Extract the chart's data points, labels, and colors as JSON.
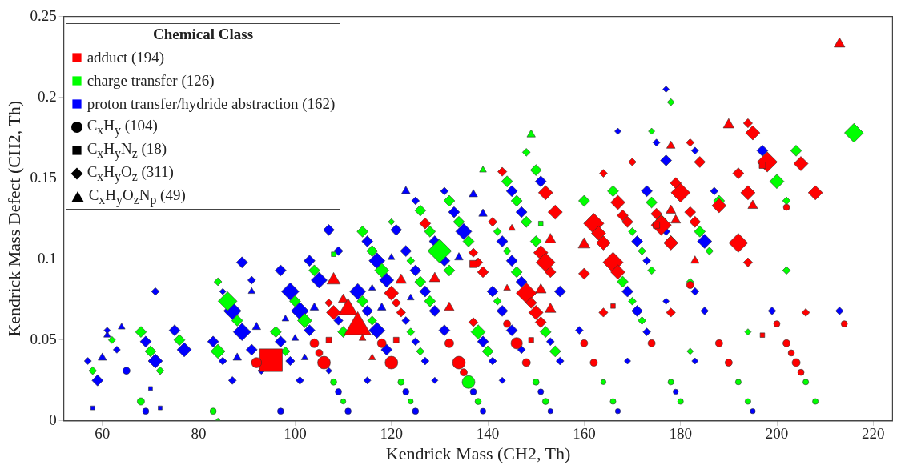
{
  "chart_data": {
    "type": "bubble",
    "xlabel": "Kendrick Mass (CH2, Th)",
    "ylabel": "Kendrick Mass Defect (CH2, Th)",
    "legend_title": "Chemical Class",
    "legend": "top left",
    "grid": false,
    "xlim": [
      52,
      224
    ],
    "xticks": [
      60,
      80,
      100,
      120,
      140,
      160,
      180,
      200,
      220
    ],
    "ylim": [
      0,
      0.25
    ],
    "yticks": [
      0,
      0.05,
      0.1,
      0.15,
      0.2,
      0.25
    ],
    "series": [
      {
        "color": "#ff0000",
        "marker": "circle",
        "x": [
          92,
          104,
          105,
          106,
          118,
          120,
          132,
          134,
          135,
          144,
          146,
          148,
          160,
          162,
          174,
          182,
          188,
          190,
          200,
          202,
          202,
          203,
          204,
          205,
          214
        ],
        "values": [
          0.036,
          0.048,
          0.042,
          0.036,
          0.048,
          0.036,
          0.048,
          0.036,
          0.03,
          0.06,
          0.048,
          0.036,
          0.048,
          0.036,
          0.048,
          0.084,
          0.048,
          0.036,
          0.06,
          0.132,
          0.048,
          0.042,
          0.036,
          0.03,
          0.06
        ],
        "sizes": [
          0.16,
          0.12,
          0.08,
          0.25,
          0.12,
          0.25,
          0.12,
          0.25,
          0.08,
          0.08,
          0.2,
          0.1,
          0.08,
          0.08,
          0.08,
          0.08,
          0.08,
          0.08,
          0.06,
          0.06,
          0.08,
          0.06,
          0.1,
          0.06,
          0.06
        ]
      },
      {
        "color": "#ff0000",
        "marker": "square",
        "x": [
          95,
          107,
          121,
          137,
          149,
          166,
          175,
          197,
          197
        ],
        "values": [
          0.0375,
          0.05,
          0.05,
          0.097,
          0.05,
          0.071,
          0.121,
          0.158,
          0.053
        ],
        "sizes": [
          1,
          0.06,
          0.06,
          0.1,
          0.05,
          0.04,
          0.08,
          0.08,
          0.04
        ]
      },
      {
        "color": "#ff0000",
        "marker": "diamond",
        "x": [
          107,
          108,
          120,
          121,
          122,
          127,
          137,
          137,
          138,
          139,
          141,
          143,
          148,
          149,
          150,
          151,
          151,
          152,
          153,
          152,
          154,
          160,
          162,
          163,
          164,
          164,
          164,
          166,
          167,
          167,
          168,
          169,
          170,
          175,
          176,
          178,
          178,
          179,
          180,
          182,
          182,
          183,
          184,
          188,
          192,
          192,
          194,
          194,
          194,
          195,
          198,
          205,
          206,
          208
        ],
        "values": [
          0.073,
          0.067,
          0.079,
          0.073,
          0.067,
          0.122,
          0.104,
          0.061,
          0.098,
          0.092,
          0.123,
          0.154,
          0.079,
          0.073,
          0.067,
          0.061,
          0.104,
          0.098,
          0.092,
          0.141,
          0.129,
          0.091,
          0.122,
          0.116,
          0.11,
          0.153,
          0.067,
          0.098,
          0.092,
          0.135,
          0.127,
          0.123,
          0.16,
          0.128,
          0.121,
          0.11,
          0.067,
          0.147,
          0.141,
          0.172,
          0.129,
          0.123,
          0.16,
          0.133,
          0.153,
          0.11,
          0.184,
          0.141,
          0.098,
          0.178,
          0.16,
          0.159,
          0.067,
          0.141
        ],
        "sizes": [
          0.06,
          0.2,
          0.2,
          0.08,
          0.08,
          0.12,
          0.08,
          0.08,
          0.08,
          0.12,
          0.08,
          0.08,
          0.4,
          0.12,
          0.2,
          0.12,
          0.2,
          0.35,
          0.12,
          0.2,
          0.2,
          0.12,
          0.4,
          0.2,
          0.2,
          0.06,
          0.08,
          0.4,
          0.2,
          0.2,
          0.12,
          0.12,
          0.06,
          0.12,
          0.4,
          0.2,
          0.08,
          0.12,
          0.35,
          0.06,
          0.12,
          0.12,
          0.12,
          0.2,
          0.12,
          0.35,
          0.08,
          0.2,
          0.08,
          0.2,
          0.4,
          0.2,
          0.06,
          0.2
        ]
      },
      {
        "color": "#ff0000",
        "marker": "triangle",
        "x": [
          108,
          110,
          111,
          113,
          114,
          116,
          122,
          129,
          132,
          144,
          145,
          151,
          153,
          153,
          160,
          178,
          179,
          178,
          183,
          190,
          195,
          213
        ],
        "values": [
          0.087,
          0.075,
          0.069,
          0.058,
          0.051,
          0.039,
          0.087,
          0.088,
          0.07,
          0.082,
          0.119,
          0.081,
          0.069,
          0.112,
          0.109,
          0.13,
          0.124,
          0.17,
          0.099,
          0.183,
          0.133,
          0.233
        ],
        "sizes": [
          0.15,
          0.08,
          0.3,
          0.6,
          0.04,
          0.04,
          0.1,
          0.1,
          0.08,
          0.04,
          0.04,
          0.1,
          0.1,
          0.1,
          0.12,
          0.08,
          0.08,
          0.06,
          0.06,
          0.1,
          0.08,
          0.1
        ]
      },
      {
        "color": "#00ff00",
        "marker": "circle",
        "x": [
          68,
          83,
          108,
          110,
          122,
          124,
          136,
          138,
          150,
          152,
          164,
          166,
          178,
          180,
          192,
          194,
          206,
          208
        ],
        "values": [
          0.012,
          0.006,
          0.024,
          0.012,
          0.024,
          0.012,
          0.024,
          0.012,
          0.024,
          0.012,
          0.024,
          0.012,
          0.024,
          0.012,
          0.024,
          0.012,
          0.024,
          0.012
        ],
        "sizes": [
          0.08,
          0.06,
          0.06,
          0.04,
          0.06,
          0.04,
          0.25,
          0.06,
          0.06,
          0.06,
          0.04,
          0.05,
          0.05,
          0.05,
          0.05,
          0.05,
          0.05,
          0.05
        ]
      },
      {
        "color": "#00ff00",
        "marker": "square",
        "x": [
          108,
          151
        ],
        "values": [
          0.103,
          0.122
        ],
        "sizes": [
          0.04,
          0.04
        ]
      },
      {
        "color": "#00ff00",
        "marker": "diamond",
        "x": [
          58,
          62,
          68,
          70,
          72,
          76,
          84,
          84,
          84,
          86,
          88,
          96,
          98,
          100,
          102,
          104,
          110,
          114,
          114,
          116,
          116,
          118,
          120,
          124,
          124,
          126,
          126,
          128,
          126,
          128,
          130,
          132,
          132,
          134,
          136,
          138,
          140,
          142,
          142,
          144,
          144,
          146,
          146,
          148,
          148,
          150,
          150,
          152,
          154,
          160,
          166,
          168,
          170,
          170,
          172,
          172,
          174,
          174,
          174,
          176,
          178,
          178,
          182,
          182,
          184,
          186,
          188,
          194,
          200,
          202,
          202,
          204,
          216
        ],
        "values": [
          0.031,
          0.05,
          0.055,
          0.043,
          0.031,
          0.05,
          0.086,
          0.043,
          0,
          0.074,
          0.062,
          0.055,
          0.043,
          0.074,
          0.062,
          0.093,
          0.055,
          0.074,
          0.117,
          0.062,
          0.105,
          0.093,
          0.123,
          0.099,
          0.055,
          0.086,
          0.043,
          0.074,
          0.13,
          0.117,
          0.105,
          0.093,
          0.136,
          0.123,
          0.111,
          0.055,
          0.043,
          0.074,
          0.117,
          0.105,
          0.148,
          0.092,
          0.136,
          0.123,
          0.166,
          0.155,
          0.111,
          0.055,
          0.043,
          0.136,
          0.142,
          0.086,
          0.074,
          0.117,
          0.062,
          0.105,
          0.093,
          0.135,
          0.179,
          0.124,
          0.197,
          0.112,
          0.086,
          0.043,
          0.117,
          0.105,
          0.136,
          0.055,
          0.148,
          0.136,
          0.093,
          0.167,
          0.178
        ],
        "sizes": [
          0.06,
          0.05,
          0.12,
          0.12,
          0.06,
          0.12,
          0.06,
          0.2,
          0.03,
          0.35,
          0.12,
          0.12,
          0.08,
          0.12,
          0.2,
          0.12,
          0.12,
          0.12,
          0.12,
          0.08,
          0.12,
          0.2,
          0.04,
          0.06,
          0.06,
          0.12,
          0.06,
          0.12,
          0.12,
          0.12,
          0.55,
          0.12,
          0.12,
          0.12,
          0.12,
          0.2,
          0.12,
          0.06,
          0.06,
          0.06,
          0.12,
          0.12,
          0.12,
          0.12,
          0.06,
          0.12,
          0.12,
          0.12,
          0.12,
          0.12,
          0.12,
          0.12,
          0.06,
          0.06,
          0.06,
          0.06,
          0.06,
          0.12,
          0.04,
          0.12,
          0.05,
          0.06,
          0.05,
          0.04,
          0.12,
          0.06,
          0.12,
          0.04,
          0.2,
          0.06,
          0.06,
          0.12,
          0.35
        ]
      },
      {
        "color": "#00ff00",
        "marker": "triangle",
        "x": [
          139,
          149
        ],
        "values": [
          0.155,
          0.177
        ],
        "sizes": [
          0.04,
          0.06
        ]
      },
      {
        "color": "#0000ff",
        "marker": "circle",
        "x": [
          65,
          69,
          97,
          109,
          111,
          123,
          125,
          137,
          139,
          151,
          153,
          167,
          179,
          195
        ],
        "values": [
          0.031,
          0.006,
          0.006,
          0.018,
          0.006,
          0.018,
          0.006,
          0.018,
          0.006,
          0.018,
          0.006,
          0.006,
          0.018,
          0.006
        ],
        "sizes": [
          0.08,
          0.06,
          0.06,
          0.06,
          0.06,
          0.06,
          0.06,
          0.06,
          0.05,
          0.05,
          0.04,
          0.04,
          0.04,
          0.04
        ]
      },
      {
        "color": "#0000ff",
        "marker": "square",
        "x": [
          58,
          70,
          72
        ],
        "values": [
          0.008,
          0.02,
          0.008
        ],
        "sizes": [
          0.03,
          0.03,
          0.03
        ]
      },
      {
        "color": "#0000ff",
        "marker": "diamond",
        "x": [
          57,
          59,
          61,
          63,
          69,
          71,
          71,
          75,
          77,
          83,
          85,
          85,
          87,
          87,
          89,
          89,
          91,
          91,
          93,
          97,
          97,
          99,
          99,
          101,
          101,
          103,
          103,
          105,
          107,
          107,
          109,
          109,
          113,
          115,
          115,
          115,
          117,
          117,
          119,
          119,
          121,
          123,
          123,
          125,
          125,
          125,
          127,
          127,
          129,
          129,
          129,
          131,
          131,
          131,
          133,
          135,
          139,
          141,
          141,
          143,
          143,
          143,
          145,
          145,
          145,
          147,
          147,
          147,
          151,
          153,
          155,
          155,
          159,
          169,
          169,
          171,
          171,
          173,
          173,
          173,
          167,
          175,
          177,
          177,
          177,
          177,
          183,
          183,
          183,
          185,
          185,
          187,
          197,
          199,
          213
        ],
        "values": [
          0.037,
          0.025,
          0.056,
          0.044,
          0.049,
          0.037,
          0.08,
          0.056,
          0.044,
          0.049,
          0.037,
          0.08,
          0.068,
          0.025,
          0.098,
          0.055,
          0.087,
          0.044,
          0.031,
          0.093,
          0.049,
          0.08,
          0.037,
          0.068,
          0.025,
          0.056,
          0.099,
          0.087,
          0.118,
          0.031,
          0.105,
          0.062,
          0.08,
          0.068,
          0.111,
          0.025,
          0.056,
          0.099,
          0.087,
          0.044,
          0.118,
          0.105,
          0.062,
          0.093,
          0.049,
          0.136,
          0.08,
          0.037,
          0.068,
          0.111,
          0.025,
          0.099,
          0.056,
          0.142,
          0.129,
          0.117,
          0.049,
          0.037,
          0.08,
          0.068,
          0.111,
          0.025,
          0.099,
          0.056,
          0.142,
          0.086,
          0.129,
          0.044,
          0.148,
          0.049,
          0.037,
          0.08,
          0.056,
          0.08,
          0.037,
          0.068,
          0.111,
          0.055,
          0.099,
          0.142,
          0.179,
          0.172,
          0.205,
          0.161,
          0.117,
          0.074,
          0.167,
          0.08,
          0.037,
          0.111,
          0.068,
          0.142,
          0.167,
          0.068,
          0.068
        ],
        "sizes": [
          0.05,
          0.12,
          0.04,
          0.05,
          0.12,
          0.2,
          0.06,
          0.12,
          0.2,
          0.12,
          0.06,
          0.04,
          0.3,
          0.06,
          0.12,
          0.3,
          0.06,
          0.12,
          0.05,
          0.12,
          0.12,
          0.3,
          0.08,
          0.3,
          0.06,
          0.12,
          0.12,
          0.25,
          0.12,
          0.04,
          0.08,
          0.08,
          0.25,
          0.12,
          0.12,
          0.05,
          0.25,
          0.25,
          0.2,
          0.12,
          0.12,
          0.12,
          0.06,
          0.12,
          0.06,
          0.06,
          0.12,
          0.06,
          0.12,
          0.12,
          0.04,
          0.12,
          0.12,
          0.06,
          0.12,
          0.25,
          0.12,
          0.06,
          0.12,
          0.12,
          0.12,
          0.04,
          0.12,
          0.12,
          0.12,
          0.12,
          0.12,
          0.06,
          0.12,
          0.06,
          0.06,
          0.12,
          0.06,
          0.12,
          0.04,
          0.12,
          0.12,
          0.06,
          0.06,
          0.12,
          0.04,
          0.05,
          0.04,
          0.12,
          0.06,
          0.04,
          0.05,
          0.06,
          0.04,
          0.2,
          0.06,
          0.06,
          0.12,
          0.06,
          0.06
        ]
      },
      {
        "color": "#0000ff",
        "marker": "triangle",
        "x": [
          60,
          61,
          64,
          88,
          91,
          92,
          98,
          100,
          102,
          104,
          116,
          118,
          120,
          123,
          124,
          134,
          137,
          139
        ],
        "values": [
          0.039,
          0.053,
          0.058,
          0.039,
          0.08,
          0.058,
          0.063,
          0.051,
          0.039,
          0.07,
          0.082,
          0.07,
          0.101,
          0.142,
          0.076,
          0.101,
          0.14,
          0.128
        ],
        "sizes": [
          0.06,
          0.04,
          0.04,
          0.06,
          0.04,
          0.06,
          0.04,
          0.04,
          0.04,
          0.06,
          0.04,
          0.06,
          0.04,
          0.06,
          0.04,
          0.06,
          0.06,
          0.06
        ]
      },
      {
        "name": "adduct (194)",
        "color": "#ff0000",
        "marker": "square"
      },
      {
        "name": "charge transfer (126)",
        "color": "#00ff00",
        "marker": "square"
      },
      {
        "name": "proton transfer/hydride abstraction (162)",
        "color": "#0000ff",
        "marker": "square"
      },
      {
        "name": "C$_{x}$H$_{y}$  (104)",
        "color": "#000000",
        "marker": "circle"
      },
      {
        "name": "C$_{x}$H$_{y}$N$_{z}$  (18)",
        "color": "#000000",
        "marker": "square"
      },
      {
        "name": "C$_{x}$H$_{y}$O$_{z}$  (311)",
        "color": "#000000",
        "marker": "diamond"
      },
      {
        "name": "C$_{x}$H$_{y}$O$_{z}$N$_{p}$  (49)",
        "color": "#000000",
        "marker": "triangle"
      }
    ]
  }
}
